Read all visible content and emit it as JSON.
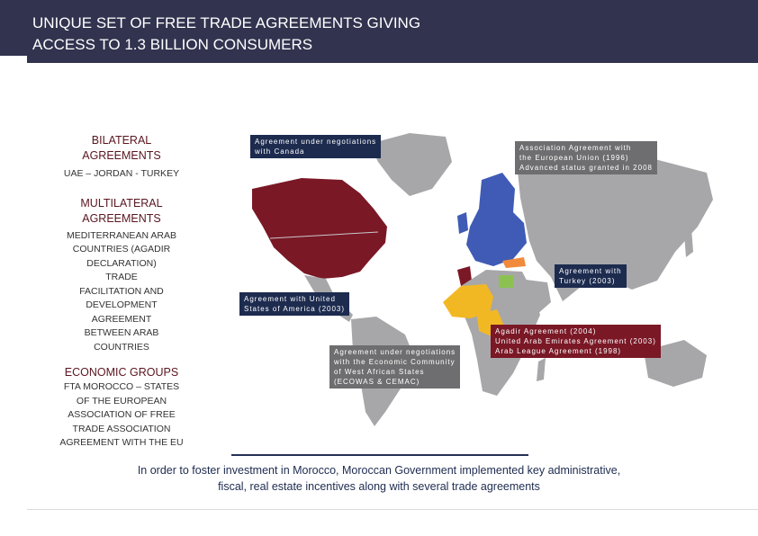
{
  "header": {
    "title": "UNIQUE SET OF FREE TRADE AGREEMENTS  GIVING\nACCESS TO 1.3 BILLION CONSUMERS"
  },
  "sidebar": {
    "bilateral_title": "BILATERAL\nAGREEMENTS",
    "bilateral_body": "UAE – JORDAN - TURKEY",
    "multilateral_title": "MULTILATERAL\nAGREEMENTS",
    "multilateral_body": "MEDITERRANEAN ARAB\nCOUNTRIES  (AGADIR\nDECLARATION)\nTRADE\nFACILITATION  AND\nDEVELOPMENT\nAGREEMENT\nBETWEEN  ARAB\nCOUNTRIES",
    "economic_title": "ECONOMIC GROUPS",
    "economic_body": "FTA MOROCCO – STATES\nOF THE EUROPEAN\nASSOCIATION OF FREE\nTRADE  ASSOCIATION\nAGREEMENT  WITH THE EU"
  },
  "callouts": {
    "canada": "Agreement  under negotiations\nwith Canada",
    "eu": "Association  Agreement with\nthe European Union (1996)\nAdvanced  status granted in 2008",
    "turkey": "Agreement with\nTurkey (2003)",
    "usa": "Agreement  with  United\nStates of America (2003)",
    "ecowas": "Agreement  under negotiations\nwith the Economic Community\nof West African States\n(ECOWAS & CEMAC)",
    "agadir": "Agadir Agreement (2004)\nUnited Arab Emirates Agreement (2003)\nArab League Agreement (1998)"
  },
  "footer": {
    "text": "In order to foster investment in Morocco, Moroccan Government implemented key administrative,\nfiscal, real estate incentives along with several trade agreements"
  },
  "colors": {
    "header_bg": "#32334f",
    "north_america": "#7a1826",
    "europe": "#3f5bb5",
    "turkey": "#f28a3c",
    "west_africa": "#f2b824",
    "egypt": "#8cc152",
    "gray_land": "#a7a7a9"
  }
}
